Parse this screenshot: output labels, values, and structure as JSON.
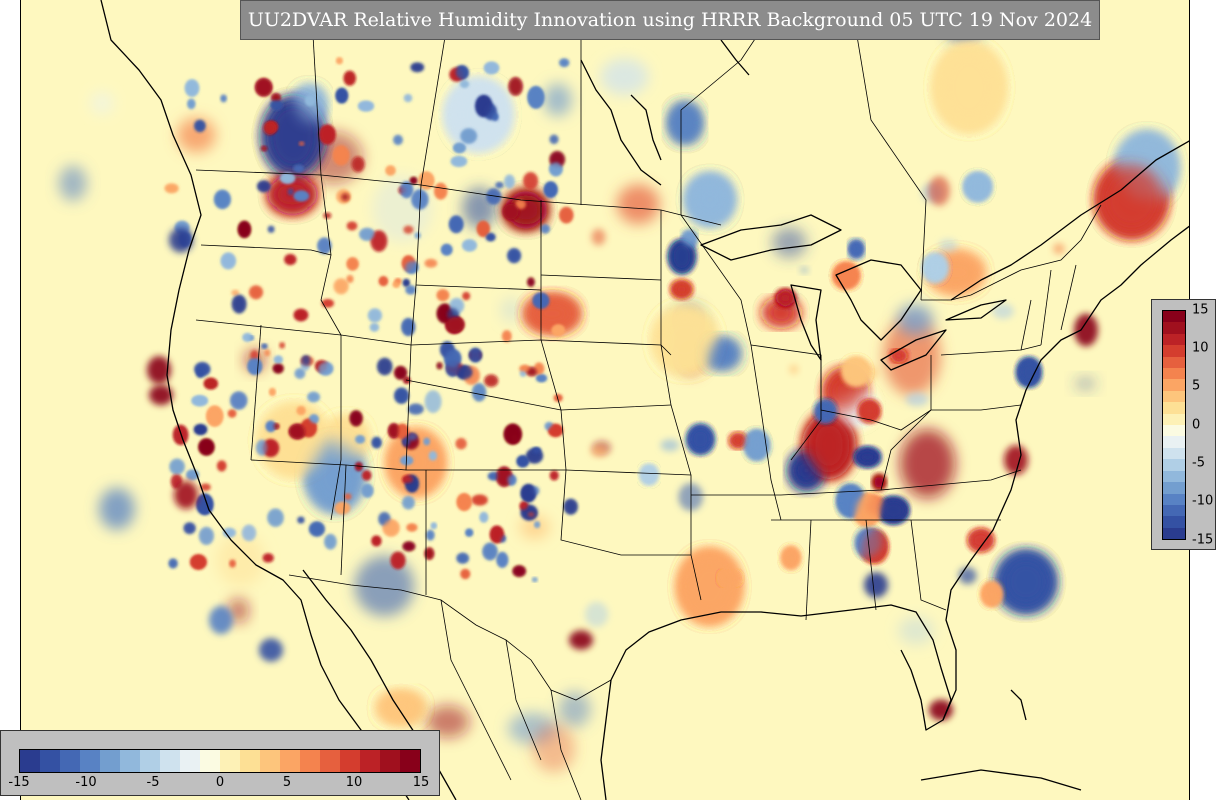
{
  "title": "UU2DVAR Relative Humidity Innovation using HRRR Background 05 UTC 19 Nov 2024",
  "colorbar": {
    "ticks": [
      "-15",
      "-10",
      "-5",
      "0",
      "5",
      "10",
      "15"
    ],
    "vertical_ticks": [
      "15",
      "10",
      "5",
      "0",
      "-5",
      "-10",
      "-15"
    ],
    "colors": [
      "#2a3c8f",
      "#3451a3",
      "#4468b4",
      "#5882c4",
      "#739ecf",
      "#91b8dc",
      "#b0cfe6",
      "#cfe2ee",
      "#e9f1f3",
      "#fbfbe2",
      "#fdf1b6",
      "#fde095",
      "#fdc57c",
      "#fba564",
      "#f4834e",
      "#e6603e",
      "#d43d2e",
      "#bc2226",
      "#a0101e",
      "#88001a"
    ]
  },
  "map": {
    "background": "#fef8bf",
    "warm_color": "#d7301f",
    "cool_color": "#2b55a8",
    "land_tint": "#f7f0c8"
  }
}
